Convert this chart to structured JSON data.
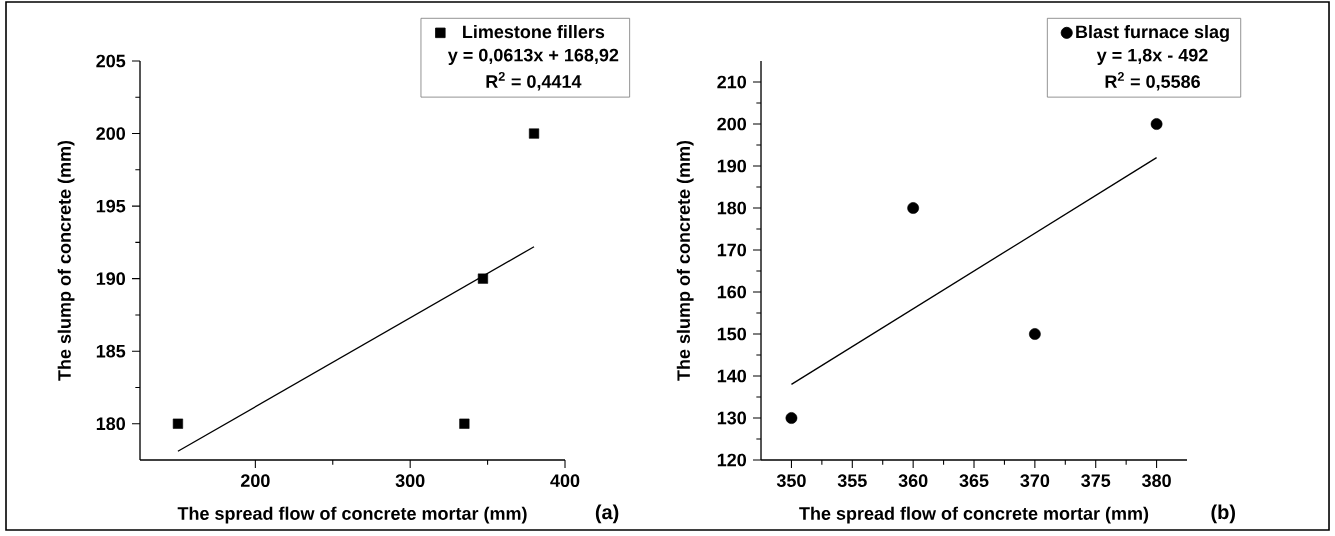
{
  "chart_data": [
    {
      "type": "scatter",
      "xlabel": "The spread flow of concrete mortar (mm)",
      "ylabel": "The slump of concrete (mm)",
      "xlim": [
        125.5,
        400
      ],
      "ylim": [
        177.5,
        205
      ],
      "xticks": [
        200,
        300,
        400
      ],
      "yticks": [
        180,
        185,
        190,
        195,
        200,
        205
      ],
      "legend": "top right",
      "series": [
        {
          "name": "Limestone fillers",
          "marker": "square",
          "color": "#000000",
          "x": [
            150,
            335,
            347,
            380
          ],
          "values": [
            180,
            180,
            190,
            200
          ]
        },
        {
          "type": "line",
          "color": "#000000",
          "x": [
            150,
            380
          ],
          "values": [
            178.1,
            192.2
          ]
        }
      ],
      "annotations": [
        "y = 0,0613x + 168,92",
        "R$^{2}$ = 0,4414",
        "(a)"
      ]
    },
    {
      "type": "scatter",
      "xlabel": "The spread flow of concrete mortar (mm)",
      "ylabel": "The slump of concrete (mm)",
      "xlim": [
        347.5,
        382.5
      ],
      "ylim": [
        120,
        215
      ],
      "xticks": [
        350,
        355,
        360,
        365,
        370,
        375,
        380
      ],
      "yticks": [
        120,
        130,
        140,
        150,
        160,
        170,
        180,
        190,
        200,
        210
      ],
      "legend": "top right",
      "series": [
        {
          "name": "Blast furnace slag",
          "marker": "circle",
          "color": "#000000",
          "x": [
            350,
            360,
            370,
            380
          ],
          "values": [
            130,
            180,
            150,
            200
          ]
        },
        {
          "type": "line",
          "color": "#000000",
          "x": [
            350,
            380
          ],
          "values": [
            138,
            192
          ]
        }
      ],
      "annotations": [
        "y = 1,8x - 492",
        "R$^{2}$ = 0,5586",
        "(b)"
      ]
    }
  ]
}
